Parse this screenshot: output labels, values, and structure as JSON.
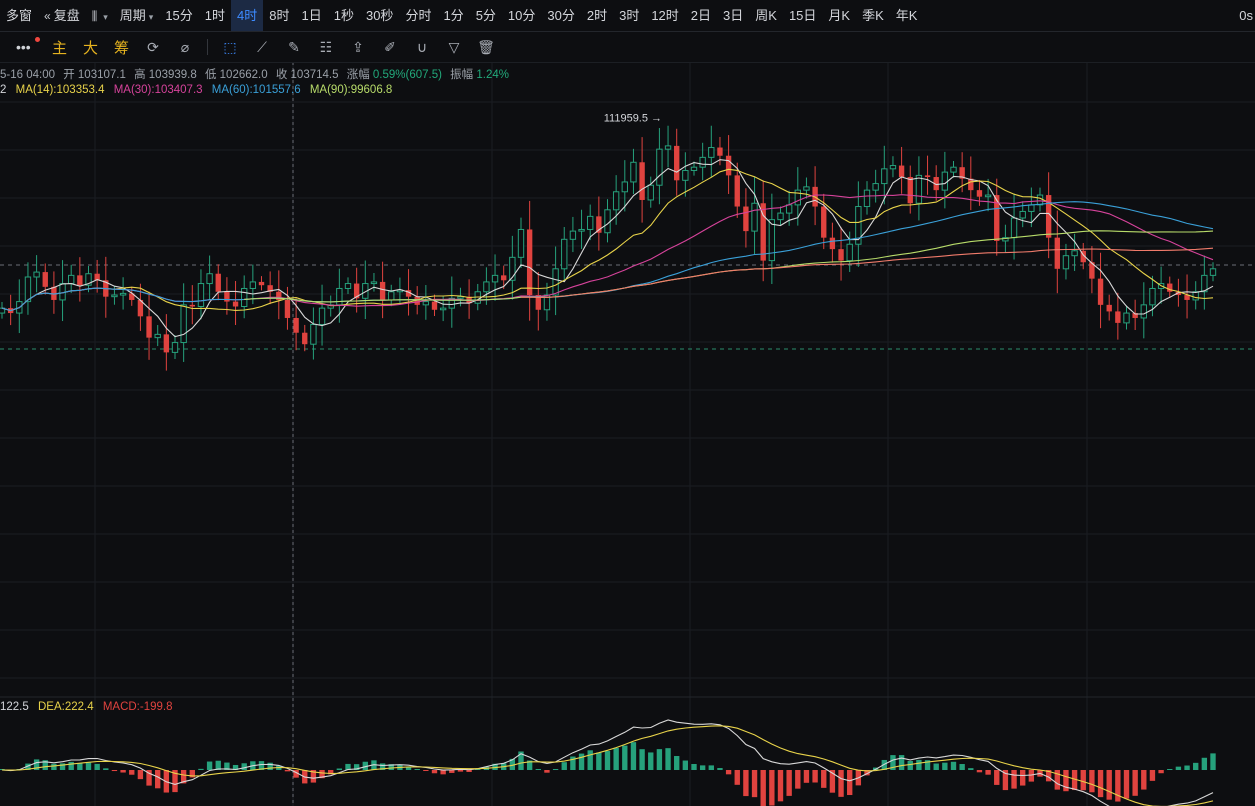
{
  "topbar": {
    "items": [
      {
        "label": "多窗",
        "icon": ""
      },
      {
        "label": "复盘",
        "icon": "rewind-icon"
      },
      {
        "label": "",
        "icon": "candles-icon",
        "caret": true
      },
      {
        "label": "周期",
        "caret": true
      },
      {
        "label": "15分"
      },
      {
        "label": "1时"
      },
      {
        "label": "4时",
        "active": true
      },
      {
        "label": "8时"
      },
      {
        "label": "1日"
      },
      {
        "label": "1秒"
      },
      {
        "label": "30秒"
      },
      {
        "label": "分时"
      },
      {
        "label": "1分"
      },
      {
        "label": "5分"
      },
      {
        "label": "10分"
      },
      {
        "label": "30分"
      },
      {
        "label": "2时"
      },
      {
        "label": "3时"
      },
      {
        "label": "12时"
      },
      {
        "label": "2日"
      },
      {
        "label": "3日"
      },
      {
        "label": "周K"
      },
      {
        "label": "15日"
      },
      {
        "label": "月K"
      },
      {
        "label": "季K"
      },
      {
        "label": "年K"
      }
    ],
    "right_label": "0s"
  },
  "toolbar": {
    "indicators": [
      "主",
      "大",
      "筹"
    ],
    "tools": [
      "cursor-icon",
      "ruler-icon",
      "pen-icon",
      "compare-icon",
      "export-icon",
      "note-icon",
      "magnet-icon",
      "filter-icon",
      "trash-icon"
    ]
  },
  "ohlc": {
    "date": "5-16 04:00",
    "open_label": "开",
    "open": "103107.1",
    "high_label": "高",
    "high": "103939.8",
    "low_label": "低",
    "low": "102662.0",
    "close_label": "收",
    "close": "103714.5",
    "change_label": "涨幅",
    "change": "0.59%(607.5)",
    "amp_label": "振幅",
    "amp": "1.24%"
  },
  "ma_legend": [
    {
      "text": "2",
      "color": "#d4d6db"
    },
    {
      "text": "MA(14):103353.4",
      "color": "#e8d34a"
    },
    {
      "text": "MA(30):103407.3",
      "color": "#d6439b"
    },
    {
      "text": "MA(60):101557.6",
      "color": "#3aa0d8"
    },
    {
      "text": "MA(90):99606.8",
      "color": "#b8dc6a"
    }
  ],
  "macd_legend": [
    {
      "text": "122.5",
      "color": "#d4d6db"
    },
    {
      "text": "DEA:222.4",
      "color": "#e8d34a"
    },
    {
      "text": "MACD:-199.8",
      "color": "#e0433f"
    }
  ],
  "colors": {
    "up": "#26a17c",
    "down": "#e0433f",
    "ma_fast": "#d8d8d8",
    "ma14": "#e8d34a",
    "ma30": "#d6439b",
    "ma60": "#3aa0d8",
    "ma90": "#b8dc6a",
    "ma_long": "#f07b6b",
    "dif": "#d8d8d8",
    "dea": "#e8d34a"
  },
  "chart_data": {
    "type": "candlestick",
    "interval": "4时",
    "high_annotation": "111959.5 →",
    "price_range": [
      78000,
      114000
    ],
    "candles_close": [
      101300,
      101000,
      101700,
      103200,
      103500,
      102600,
      101800,
      102800,
      103300,
      102700,
      103400,
      103000,
      102000,
      102100,
      102200,
      101800,
      100800,
      99500,
      99700,
      98600,
      99200,
      101500,
      101400,
      102800,
      103400,
      102300,
      101700,
      101400,
      102500,
      102900,
      102700,
      102300,
      101800,
      100700,
      99800,
      99100,
      100300,
      101300,
      101500,
      102500,
      102800,
      101900,
      102800,
      102900,
      101800,
      102300,
      102400,
      102000,
      101500,
      101700,
      101200,
      101300,
      101900,
      102000,
      101600,
      102300,
      102900,
      103300,
      103000,
      104400,
      106100,
      102100,
      101200,
      102100,
      103700,
      105500,
      106000,
      106100,
      106900,
      105900,
      107300,
      108400,
      109000,
      110200,
      107900,
      108800,
      111000,
      111200,
      109100,
      109700,
      109900,
      110500,
      111100,
      110600,
      109400,
      107500,
      106000,
      107700,
      104200,
      106700,
      107100,
      107600,
      108500,
      108700,
      107500,
      105600,
      104900,
      104200,
      105200,
      107500,
      108500,
      108900,
      109800,
      110000,
      109300,
      107700,
      109400,
      109300,
      108500,
      109600,
      109900,
      109200,
      108500,
      108100,
      108200,
      105400,
      105600,
      106800,
      107200,
      107600,
      108200,
      105600,
      103700,
      104500,
      104800,
      104100,
      103100,
      101500,
      101100,
      100400,
      101000,
      100700,
      101500,
      102500,
      102800,
      102300,
      102100,
      101800,
      102300,
      103300,
      103700
    ]
  }
}
